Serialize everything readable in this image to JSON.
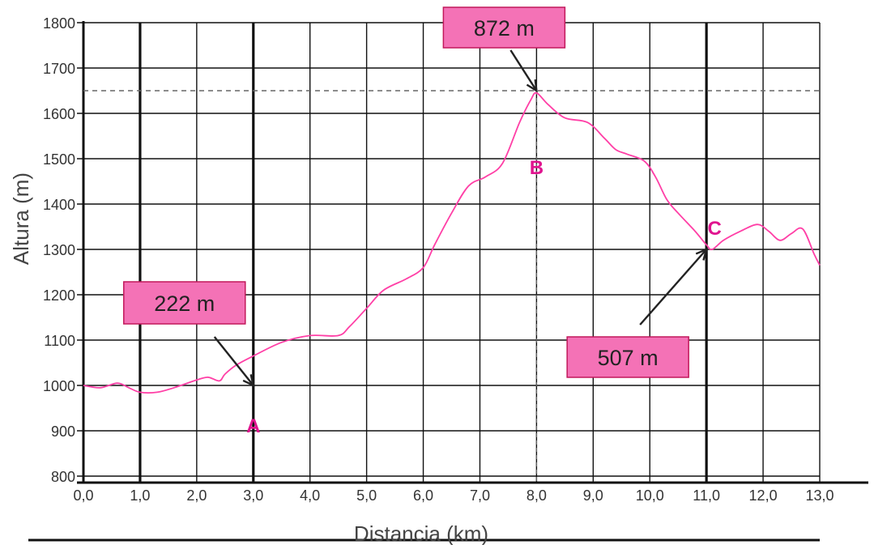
{
  "chart_data": {
    "type": "line",
    "xlabel": "Distancia (km)",
    "ylabel": "Altura (m)",
    "xlim": [
      0,
      13
    ],
    "ylim": [
      800,
      1800
    ],
    "x_ticks": [
      "0,0",
      "1,0",
      "2,0",
      "3,0",
      "4,0",
      "5,0",
      "6,0",
      "7,0",
      "8,0",
      "9,0",
      "10,0",
      "11,0",
      "12,0",
      "13,0"
    ],
    "y_ticks": [
      "800",
      "900",
      "1000",
      "1100",
      "1200",
      "1300",
      "1400",
      "1500",
      "1600",
      "1700",
      "1800"
    ],
    "grid": true,
    "reference_line_y": 1650,
    "reference_line_x": 8.0,
    "line_color": "#ff3fa6",
    "series": [
      {
        "x": [
          0,
          0.3,
          0.6,
          0.8,
          1.0,
          1.3,
          1.6,
          2.0,
          2.2,
          2.4,
          2.5,
          2.7,
          3.0,
          3.5,
          4.0,
          4.5,
          4.7,
          5.0,
          5.3,
          5.7,
          6.0,
          6.2,
          6.5,
          6.8,
          7.1,
          7.4,
          7.7,
          7.9,
          8.0,
          8.2,
          8.5,
          8.9,
          9.2,
          9.4,
          9.6,
          9.9,
          10.1,
          10.3,
          10.5,
          10.8,
          11.0,
          11.1,
          11.3,
          11.6,
          11.9,
          12.1,
          12.3,
          12.5,
          12.7,
          12.9,
          13.0
        ],
        "y": [
          1000,
          995,
          1005,
          995,
          985,
          985,
          995,
          1012,
          1018,
          1010,
          1025,
          1045,
          1065,
          1095,
          1110,
          1110,
          1130,
          1170,
          1210,
          1235,
          1260,
          1310,
          1380,
          1440,
          1460,
          1490,
          1580,
          1630,
          1645,
          1620,
          1590,
          1580,
          1545,
          1520,
          1510,
          1495,
          1460,
          1410,
          1380,
          1340,
          1310,
          1300,
          1320,
          1340,
          1355,
          1340,
          1320,
          1335,
          1345,
          1290,
          1265
        ]
      }
    ],
    "points": [
      {
        "label": "A",
        "x": 3.0,
        "y": 1000
      },
      {
        "label": "B",
        "x": 8.0,
        "y": 1650
      },
      {
        "label": "C",
        "x": 11.0,
        "y": 1300
      }
    ],
    "annotations": [
      {
        "text": "222 m",
        "x": 3.0,
        "y": 1000,
        "box_color": "#f472b6"
      },
      {
        "text": "872 m",
        "x": 8.0,
        "y": 1650,
        "box_color": "#f472b6"
      },
      {
        "text": "507 m",
        "x": 11.0,
        "y": 1300,
        "box_color": "#f472b6"
      }
    ],
    "colors": {
      "line": "#ff3fa6",
      "point_label": "#e0148f",
      "annotation_box": "#f472b6",
      "annotation_border": "#c2185b",
      "grid": "#111111",
      "axis": "#111111",
      "text": "#333333",
      "ref_line": "#666666"
    }
  }
}
